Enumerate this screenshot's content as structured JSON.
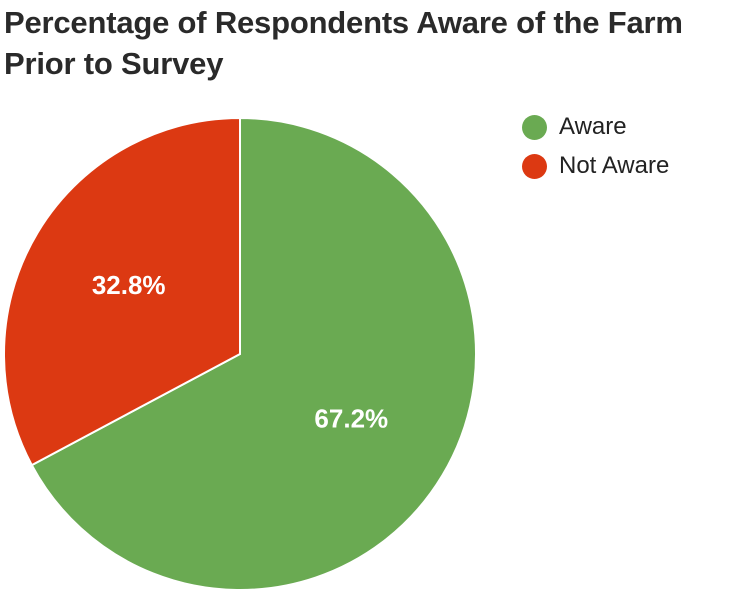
{
  "chart_data": {
    "type": "pie",
    "title": "Percentage of Respondents Aware of the Farm Prior to Survey",
    "slices": [
      {
        "label": "Aware",
        "value": 67.2,
        "display": "67.2%",
        "color": "#6aaa52"
      },
      {
        "label": "Not Aware",
        "value": 32.8,
        "display": "32.8%",
        "color": "#dc3912"
      }
    ],
    "legend_position": "right",
    "start_angle_deg": 0,
    "direction": "clockwise",
    "slice_border_color": "#ffffff",
    "label_color": "#ffffff"
  }
}
